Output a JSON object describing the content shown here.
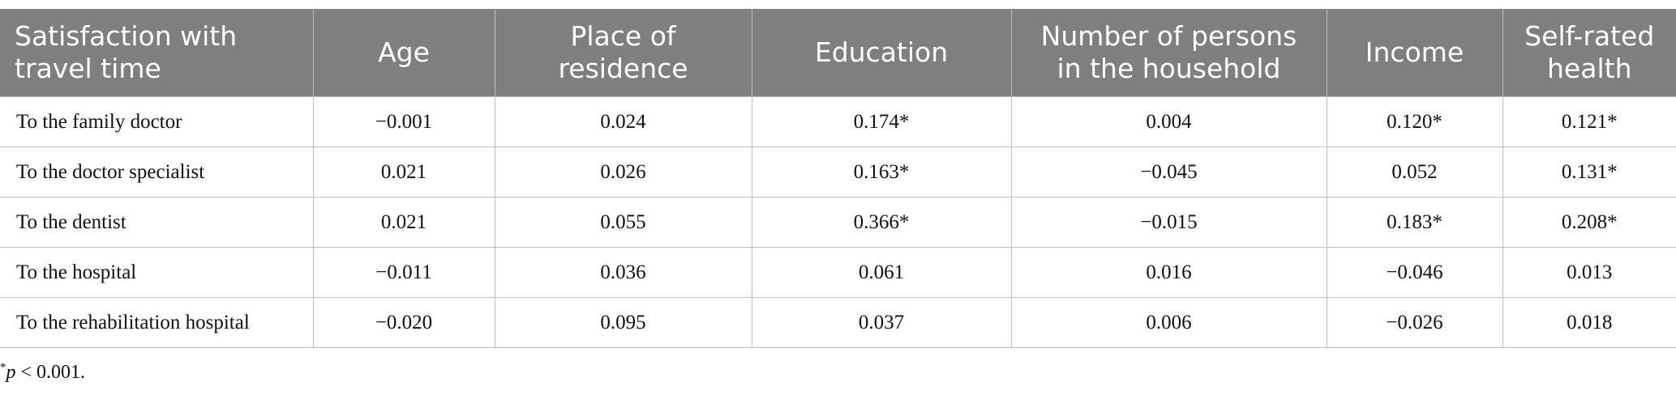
{
  "table": {
    "header": [
      "Satisfaction with travel time",
      "Age",
      "Place of residence",
      "Education",
      "Number of persons in the household",
      "Income",
      "Self-rated health"
    ],
    "rows": [
      [
        "To the family doctor",
        "−0.001",
        "0.024",
        "0.174*",
        "0.004",
        "0.120*",
        "0.121*"
      ],
      [
        "To the doctor specialist",
        "0.021",
        "0.026",
        "0.163*",
        "−0.045",
        "0.052",
        "0.131*"
      ],
      [
        "To the dentist",
        "0.021",
        "0.055",
        "0.366*",
        "−0.015",
        "0.183*",
        "0.208*"
      ],
      [
        "To the hospital",
        "−0.011",
        "0.036",
        "0.061",
        "0.016",
        "−0.046",
        "0.013"
      ],
      [
        "To the rehabilitation hospital",
        "−0.020",
        "0.095",
        "0.037",
        "0.006",
        "−0.026",
        "0.018"
      ]
    ]
  },
  "footnote": {
    "marker": "*",
    "symbol": "p",
    "text": " < 0.001."
  }
}
